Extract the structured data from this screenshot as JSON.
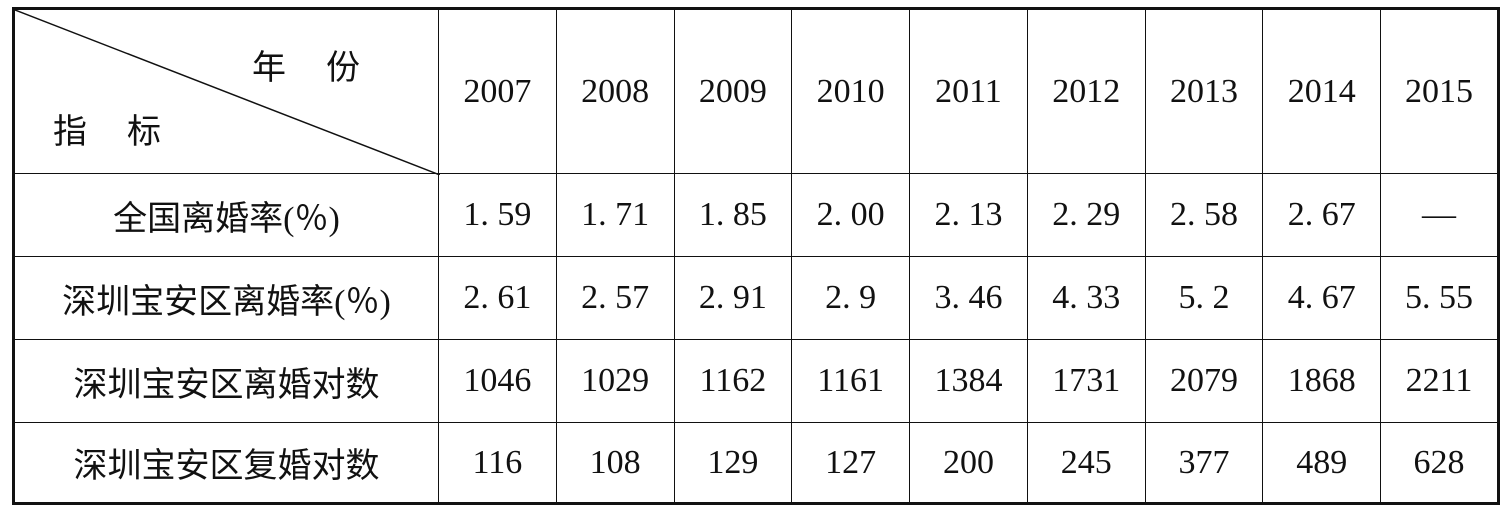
{
  "table": {
    "corner": {
      "column_label": "年份",
      "row_label": "指标"
    },
    "years": [
      "2007",
      "2008",
      "2009",
      "2010",
      "2011",
      "2012",
      "2013",
      "2014",
      "2015"
    ],
    "rows": [
      {
        "label": "全国离婚率(％)",
        "cells": [
          "1. 59",
          "1. 71",
          "1. 85",
          "2. 00",
          "2. 13",
          "2. 29",
          "2. 58",
          "2. 67",
          "—"
        ]
      },
      {
        "label": "深圳宝安区离婚率(％)",
        "cells": [
          "2. 61",
          "2. 57",
          "2. 91",
          "2. 9",
          "3. 46",
          "4. 33",
          "5. 2",
          "4. 67",
          "5. 55"
        ]
      },
      {
        "label": "深圳宝安区离婚对数",
        "cells": [
          "1046",
          "1029",
          "1162",
          "1161",
          "1384",
          "1731",
          "2079",
          "1868",
          "2211"
        ]
      },
      {
        "label": "深圳宝安区复婚对数",
        "cells": [
          "116",
          "108",
          "129",
          "127",
          "200",
          "245",
          "377",
          "489",
          "628"
        ]
      }
    ]
  }
}
